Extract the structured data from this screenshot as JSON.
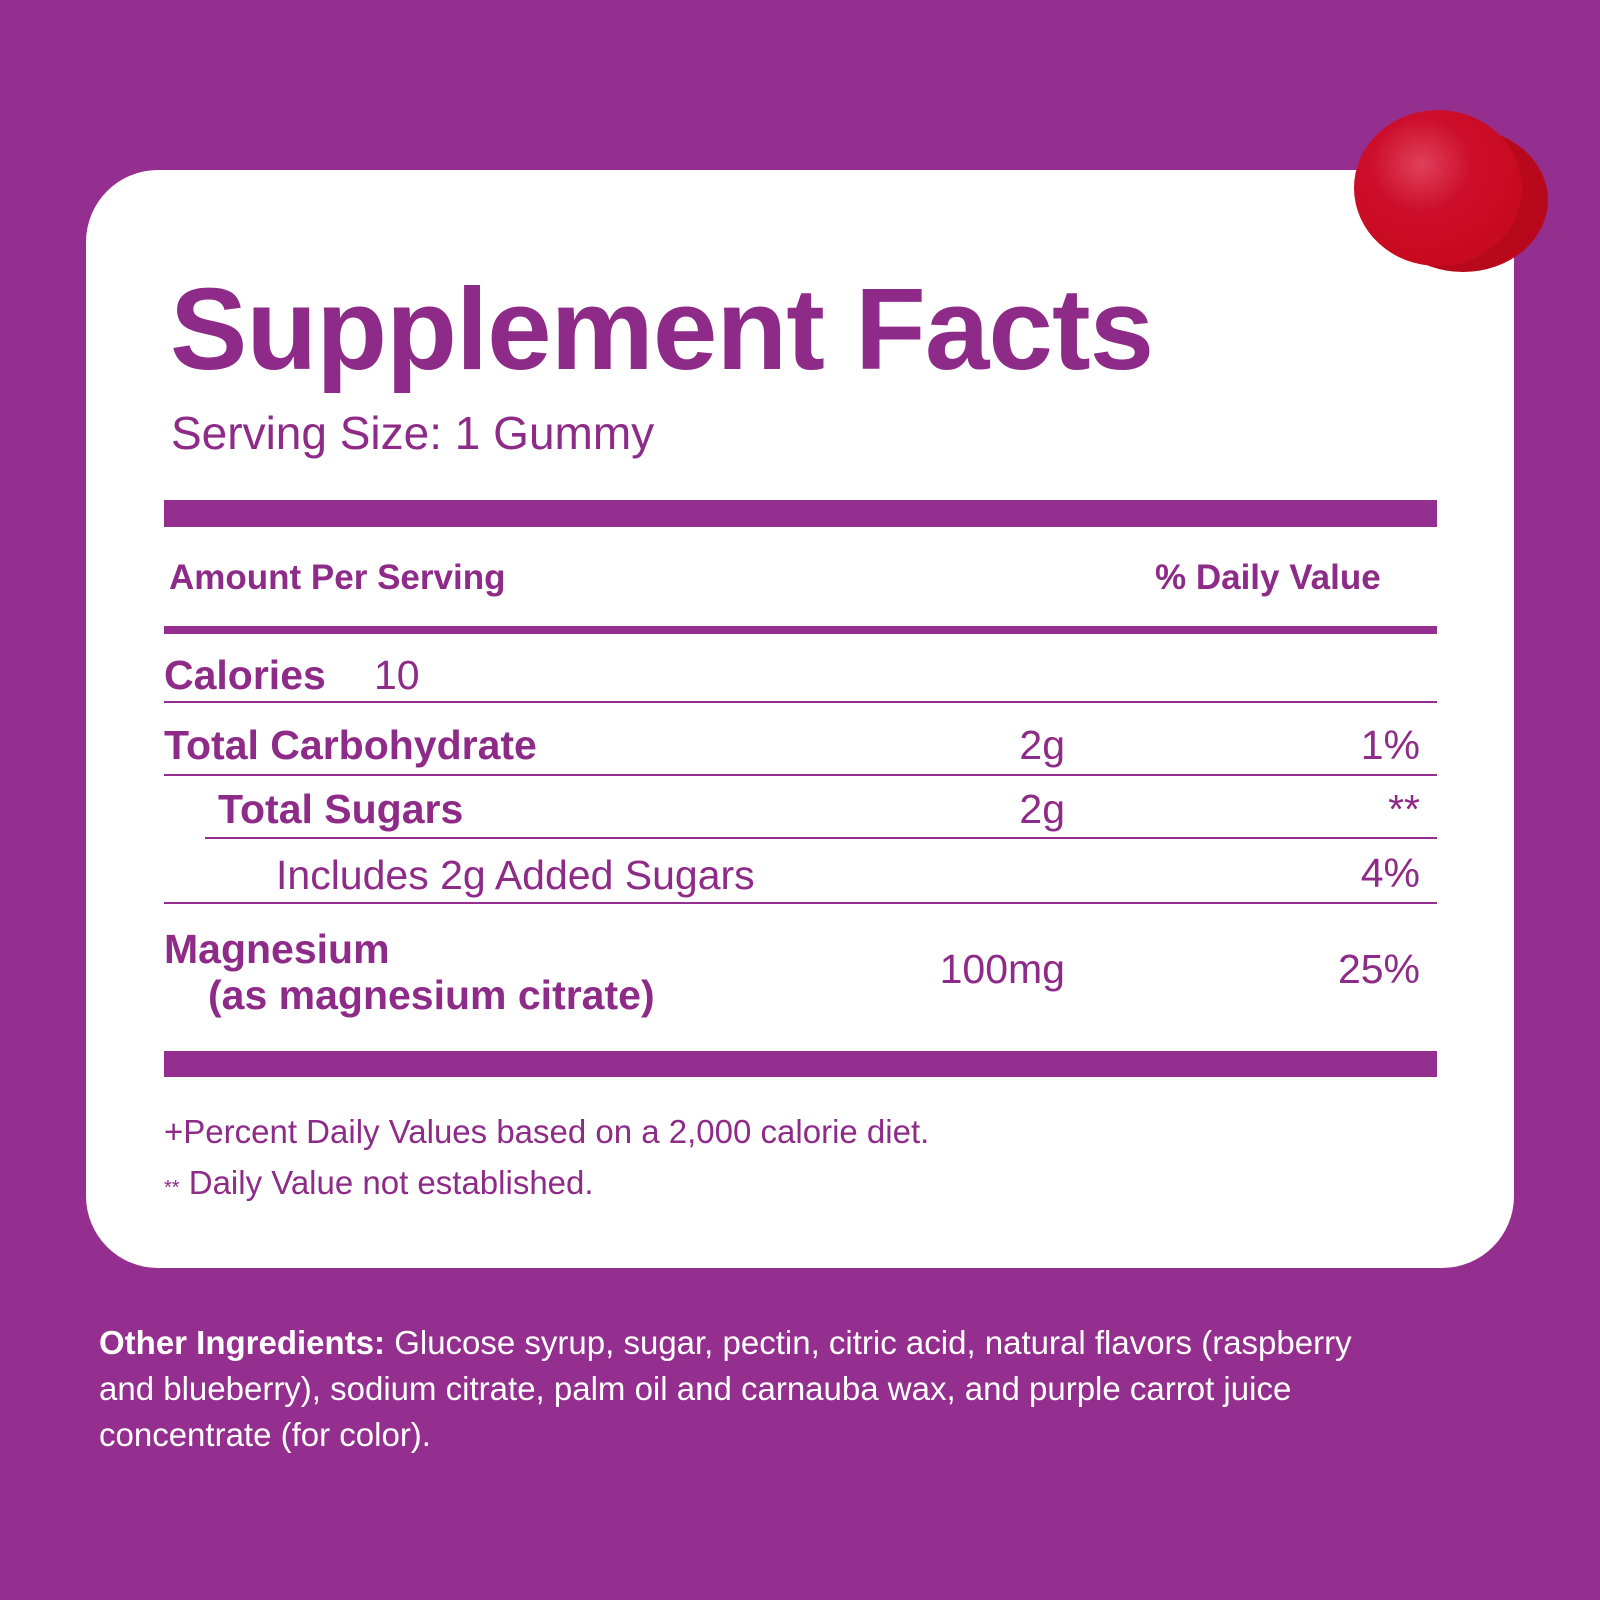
{
  "title": "Supplement Facts",
  "serving_size": "Serving Size: 1 Gummy",
  "header": {
    "amount": "Amount Per Serving",
    "dv": "% Daily Value"
  },
  "rows": [
    {
      "label": "Calories",
      "amount": "10",
      "dv": ""
    },
    {
      "label": "Total Carbohydrate",
      "amount": "2g",
      "dv": "1%"
    },
    {
      "label": "Total Sugars",
      "amount": "2g",
      "dv": "**"
    },
    {
      "label": "Includes 2g Added Sugars",
      "amount": "",
      "dv": "4%"
    },
    {
      "label": "Magnesium",
      "sublabel": "(as magnesium citrate)",
      "amount": "100mg",
      "dv": "25%"
    }
  ],
  "footnotes": [
    {
      "mark": "+",
      "text": "Percent Daily Values based on a 2,000 calorie diet."
    },
    {
      "mark": "**",
      "text": "Daily Value not established."
    }
  ],
  "ingredients": {
    "label": "Other Ingredients:",
    "text": " Glucose syrup, sugar, pectin, citric acid, natural flavors (raspberry and blueberry), sodium citrate, palm oil and carnauba wax, and purple carrot juice concentrate (for color)."
  },
  "colors": {
    "background": "#952f8f",
    "text": "#8e2b88",
    "gummy": "#d0102c"
  }
}
